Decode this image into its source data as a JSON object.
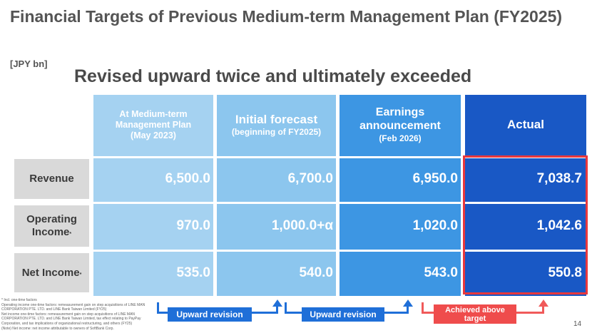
{
  "title": "Financial Targets of Previous Medium-term Management Plan (FY2025)",
  "unit": "[JPY bn]",
  "headline": "Revised upward twice and ultimately exceeded",
  "columns": {
    "c1": {
      "line1": "At Medium-term",
      "line2": "Management Plan",
      "line3": "(May 2023)"
    },
    "c2": {
      "line1": "Initial forecast",
      "line2": "(beginning of FY2025)"
    },
    "c3": {
      "line1": "Earnings",
      "line2": "announcement",
      "line3": "(Feb 2026)"
    },
    "c4": {
      "line1": "Actual"
    }
  },
  "rows": {
    "revenue": {
      "label": "Revenue",
      "c1": "6,500.0",
      "c2": "6,700.0",
      "c3": "6,950.0",
      "c4": "7,038.7"
    },
    "operating": {
      "label1": "Operating",
      "label2": "Income",
      "mark": "*",
      "c1": "970.0",
      "c2": "1,000.0+α",
      "c3": "1,020.0",
      "c4": "1,042.6"
    },
    "net": {
      "label": "Net Income",
      "mark": "*",
      "c1": "535.0",
      "c2": "540.0",
      "c3": "543.0",
      "c4": "550.8"
    }
  },
  "notes": {
    "l1": "* Incl. one-time factors",
    "l2": "Operating income one-time factors: remeasurement gain on step acquisitions of LINE MAN CORPORATION PTE. LTD. and LINE Bank Taiwan Limited (FY25)",
    "l3": "Net income one-time factors: remeasurement gain on step acquisitions of LINE MAN CORPORATION PTE. LTD. and LINE Bank Taiwan Limited, tax effect relating to PayPay Corporation, and tax implications of organizational restructuring, and others (FY25)",
    "l4": "(Note) Net income: net income attributable to owners of SoftBank Corp."
  },
  "labels": {
    "rev1": "Upward revision",
    "rev2": "Upward revision",
    "achieved1": "Achieved above",
    "achieved2": "target"
  },
  "page_number": "14",
  "colors": {
    "col1": "#a5d2f1",
    "col2": "#8cc6ee",
    "col3": "#3d96e3",
    "col4": "#1958c5",
    "highlight": "#e8383d",
    "blue_label": "#1f6fd8",
    "red_label": "#ef4c4c"
  }
}
